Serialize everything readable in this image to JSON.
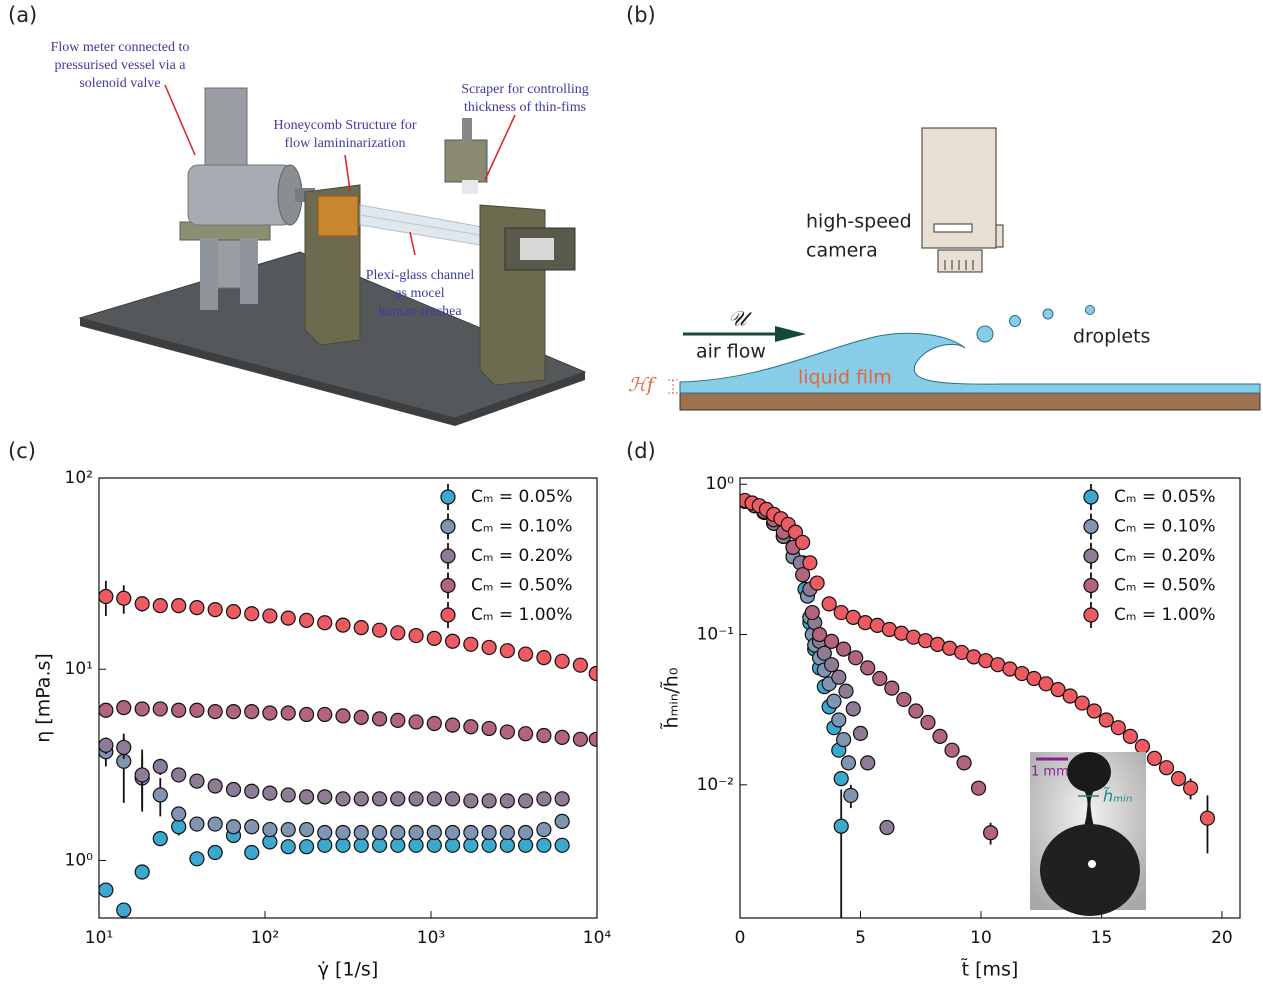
{
  "figure": {
    "panel_labels": [
      "(a)",
      "(b)",
      "(c)",
      "(d)"
    ],
    "a": {
      "annotations": [
        [
          "Flow meter connected to",
          "pressurised vessel via a",
          "solenoid valve"
        ],
        [
          "Honeycomb Structure for",
          "flow lamininarization"
        ],
        [
          "Scraper for controlling",
          "thickness of thin-fims"
        ],
        [
          "Plexi-glass channel",
          "as mocel",
          "human-trachea"
        ]
      ]
    },
    "b": {
      "camera": [
        "high-speed",
        "camera"
      ],
      "droplets": "droplets",
      "velocity": "𝒰",
      "air_flow": "air flow",
      "film": "liquid film",
      "thickness": "ℋf"
    },
    "inset": {
      "scale": "1 mm",
      "label": "h̃ₘᵢₙ"
    }
  },
  "chart_data": [
    {
      "type": "scatter",
      "log_x": true,
      "log_y": true,
      "legend": "upper right",
      "x_label": "γ̇ [1/s]",
      "y_label": "η [mPa.s]",
      "xlim": [
        10,
        10000
      ],
      "ylim": [
        0.5,
        100
      ],
      "xticks": [
        {
          "value": 10,
          "label": "10¹"
        },
        {
          "value": 100,
          "label": "10²"
        },
        {
          "value": 1000,
          "label": "10³"
        },
        {
          "value": 10000,
          "label": "10⁴"
        }
      ],
      "yticks": [
        {
          "value": 1,
          "label": "10⁰"
        },
        {
          "value": 10,
          "label": "10¹"
        },
        {
          "value": 100,
          "label": "10²"
        }
      ],
      "x": [
        11.0,
        14.1,
        18.2,
        23.4,
        30.2,
        38.9,
        50.1,
        64.6,
        83.2,
        107,
        138,
        178,
        229,
        295,
        380,
        490,
        631,
        813,
        1047,
        1349,
        1738,
        2239,
        2884,
        3715,
        4786,
        6166,
        7943,
        9900
      ],
      "series": [
        {
          "name": "Cₘ = 0.05%",
          "color": "#3aa8cf",
          "values": [
            0.7,
            0.55,
            0.87,
            1.3,
            1.5,
            1.02,
            1.1,
            1.35,
            1.1,
            1.25,
            1.18,
            1.18,
            1.2,
            1.2,
            1.2,
            1.2,
            1.2,
            1.2,
            1.2,
            1.2,
            1.2,
            1.2,
            1.2,
            1.2,
            1.2,
            1.2,
            null,
            null
          ],
          "errors": [
            0.05,
            null,
            0.05,
            0.1,
            0.15,
            null,
            null,
            null,
            null,
            null,
            null,
            null,
            null,
            null,
            null,
            null,
            null,
            null,
            null,
            null,
            null,
            null,
            null,
            null,
            null,
            null,
            null,
            null
          ]
        },
        {
          "name": "Cₘ = 0.10%",
          "color": "#7f95b2",
          "values": [
            3.7,
            3.3,
            2.7,
            2.2,
            1.75,
            1.55,
            1.55,
            1.5,
            1.5,
            1.45,
            1.45,
            1.45,
            1.4,
            1.4,
            1.4,
            1.4,
            1.4,
            1.4,
            1.4,
            1.4,
            1.4,
            1.4,
            1.4,
            1.4,
            1.45,
            1.6,
            null,
            null
          ],
          "errors": [
            0.6,
            1.3,
            0.8,
            0.5,
            0.15,
            null,
            null,
            null,
            null,
            null,
            null,
            null,
            null,
            null,
            null,
            null,
            null,
            null,
            null,
            null,
            null,
            null,
            null,
            null,
            null,
            null,
            null,
            null
          ]
        },
        {
          "name": "Cₘ = 0.20%",
          "color": "#8e7c96",
          "values": [
            4.0,
            3.9,
            2.8,
            3.1,
            2.8,
            2.6,
            2.45,
            2.35,
            2.3,
            2.25,
            2.2,
            2.15,
            2.15,
            2.1,
            2.1,
            2.1,
            2.1,
            2.1,
            2.1,
            2.1,
            2.05,
            2.05,
            2.05,
            2.05,
            2.1,
            2.1,
            null,
            null
          ],
          "errors": [
            0.4,
            0.5,
            1.0,
            0.3,
            null,
            null,
            null,
            null,
            null,
            null,
            null,
            null,
            null,
            null,
            null,
            null,
            null,
            null,
            null,
            null,
            null,
            null,
            null,
            null,
            null,
            null,
            null,
            null
          ]
        },
        {
          "name": "Cₘ = 0.50%",
          "color": "#b2647c",
          "values": [
            6.1,
            6.3,
            6.2,
            6.2,
            6.1,
            6.1,
            6.0,
            6.0,
            6.0,
            5.9,
            5.9,
            5.8,
            5.8,
            5.7,
            5.6,
            5.5,
            5.4,
            5.3,
            5.2,
            5.1,
            5.0,
            4.9,
            4.7,
            4.6,
            4.5,
            4.4,
            4.3,
            4.3
          ],
          "errors": [
            0.3,
            0.3,
            null,
            null,
            null,
            null,
            null,
            null,
            null,
            null,
            null,
            null,
            null,
            null,
            null,
            null,
            null,
            null,
            null,
            null,
            null,
            null,
            null,
            null,
            null,
            null,
            null,
            null
          ]
        },
        {
          "name": "Cₘ = 1.00%",
          "color": "#ee5a62",
          "values": [
            24,
            23.5,
            22,
            21.5,
            21.5,
            21,
            20.5,
            20,
            19.5,
            19,
            18.5,
            18,
            17.5,
            17,
            16.5,
            16,
            15.5,
            15,
            14.5,
            14,
            13.5,
            13,
            12.5,
            12,
            11.5,
            11,
            10.5,
            9.5
          ],
          "errors": [
            5,
            4,
            2,
            1.5,
            1.5,
            null,
            null,
            null,
            null,
            null,
            null,
            null,
            null,
            null,
            null,
            null,
            null,
            null,
            null,
            null,
            null,
            null,
            null,
            null,
            null,
            null,
            null,
            null
          ]
        }
      ]
    },
    {
      "type": "scatter",
      "log_y": true,
      "legend": "upper right",
      "x_label": "t̃ [ms]",
      "y_label": "h̃ₘᵢₙ/h̃₀",
      "xlim": [
        0,
        20.75
      ],
      "ylim": [
        0.0013,
        1.1
      ],
      "xticks": [
        0,
        5,
        10,
        15,
        20
      ],
      "yticks": [
        {
          "value": 0.01,
          "label": "10⁻²"
        },
        {
          "value": 0.1,
          "label": "10⁻¹"
        },
        {
          "value": 1,
          "label": "10⁰"
        }
      ],
      "series": [
        {
          "name": "Cₘ = 0.05%",
          "color": "#3aa8cf",
          "x": [
            0.2,
            0.6,
            1.0,
            1.4,
            1.8,
            2.2,
            2.7,
            2.9,
            3.1,
            3.3,
            3.5,
            3.7,
            3.9,
            4.1,
            4.2,
            4.2
          ],
          "values": [
            0.77,
            0.72,
            0.65,
            0.55,
            0.45,
            0.33,
            0.2,
            0.12,
            0.08,
            0.06,
            0.045,
            0.033,
            0.024,
            0.017,
            0.011,
            0.0053
          ],
          "errors": [
            null,
            null,
            null,
            null,
            null,
            null,
            null,
            null,
            null,
            null,
            null,
            null,
            null,
            null,
            null,
            0.004
          ]
        },
        {
          "name": "Cₘ = 0.10%",
          "color": "#7f95b2",
          "x": [
            0.2,
            0.6,
            1.0,
            1.4,
            1.8,
            2.2,
            2.6,
            2.8,
            2.9,
            3.0,
            3.1,
            3.3,
            3.5,
            3.7,
            3.9,
            4.1,
            4.3,
            4.5,
            4.6
          ],
          "values": [
            0.77,
            0.72,
            0.65,
            0.55,
            0.45,
            0.33,
            0.3,
            0.18,
            0.13,
            0.1,
            0.085,
            0.07,
            0.058,
            0.047,
            0.036,
            0.027,
            0.02,
            0.014,
            0.0085
          ],
          "errors": [
            null,
            null,
            null,
            null,
            null,
            null,
            null,
            null,
            null,
            null,
            null,
            null,
            null,
            null,
            null,
            null,
            null,
            null,
            0.0015
          ]
        },
        {
          "name": "Cₘ = 0.20%",
          "color": "#8e7c96",
          "x": [
            0.2,
            0.6,
            1.0,
            1.4,
            1.8,
            2.2,
            2.5,
            2.9,
            3.1,
            3.3,
            3.5,
            3.8,
            4.1,
            4.4,
            4.7,
            5.0,
            5.3,
            6.1
          ],
          "values": [
            0.77,
            0.72,
            0.65,
            0.55,
            0.45,
            0.38,
            0.3,
            0.2,
            0.12,
            0.09,
            0.075,
            0.063,
            0.052,
            0.042,
            0.032,
            0.022,
            0.014,
            0.0052
          ]
        },
        {
          "name": "Cₘ = 0.50%",
          "color": "#b2647c",
          "x": [
            0.2,
            0.6,
            1.0,
            1.4,
            1.8,
            2.2,
            2.6,
            3.0,
            3.3,
            3.8,
            4.3,
            4.8,
            5.3,
            5.8,
            6.3,
            6.8,
            7.3,
            7.8,
            8.3,
            8.8,
            9.3,
            9.9,
            10.4
          ],
          "values": [
            0.77,
            0.72,
            0.66,
            0.58,
            0.48,
            0.38,
            0.25,
            0.14,
            0.1,
            0.09,
            0.08,
            0.07,
            0.06,
            0.051,
            0.044,
            0.037,
            0.031,
            0.026,
            0.021,
            0.017,
            0.014,
            0.0095,
            0.0048
          ],
          "errors": [
            null,
            null,
            null,
            null,
            null,
            null,
            null,
            null,
            null,
            null,
            null,
            null,
            null,
            null,
            null,
            null,
            null,
            null,
            null,
            null,
            null,
            null,
            0.0008
          ]
        },
        {
          "name": "Cₘ = 1.00%",
          "color": "#ee5a62",
          "x": [
            0.2,
            0.5,
            0.8,
            1.1,
            1.4,
            1.7,
            2.0,
            2.3,
            2.6,
            2.9,
            3.2,
            3.7,
            4.2,
            4.7,
            5.2,
            5.7,
            6.2,
            6.7,
            7.2,
            7.7,
            8.2,
            8.7,
            9.2,
            9.7,
            10.2,
            10.7,
            11.2,
            11.7,
            12.2,
            12.7,
            13.2,
            13.7,
            14.2,
            14.7,
            15.2,
            15.7,
            16.2,
            16.7,
            17.2,
            17.7,
            18.2,
            18.7,
            19.4
          ],
          "values": [
            0.78,
            0.75,
            0.72,
            0.68,
            0.63,
            0.59,
            0.54,
            0.48,
            0.41,
            0.3,
            0.22,
            0.16,
            0.14,
            0.13,
            0.12,
            0.115,
            0.108,
            0.102,
            0.096,
            0.091,
            0.086,
            0.081,
            0.076,
            0.071,
            0.067,
            0.063,
            0.059,
            0.055,
            0.051,
            0.047,
            0.043,
            0.039,
            0.035,
            0.031,
            0.027,
            0.024,
            0.021,
            0.018,
            0.015,
            0.013,
            0.011,
            0.0095,
            0.006
          ],
          "errors": [
            null,
            null,
            null,
            null,
            null,
            null,
            null,
            null,
            null,
            null,
            null,
            null,
            null,
            null,
            null,
            null,
            null,
            null,
            null,
            null,
            null,
            null,
            null,
            null,
            null,
            null,
            null,
            null,
            null,
            null,
            null,
            null,
            null,
            null,
            null,
            null,
            null,
            null,
            null,
            null,
            null,
            0.0015,
            0.0025
          ]
        }
      ]
    }
  ]
}
